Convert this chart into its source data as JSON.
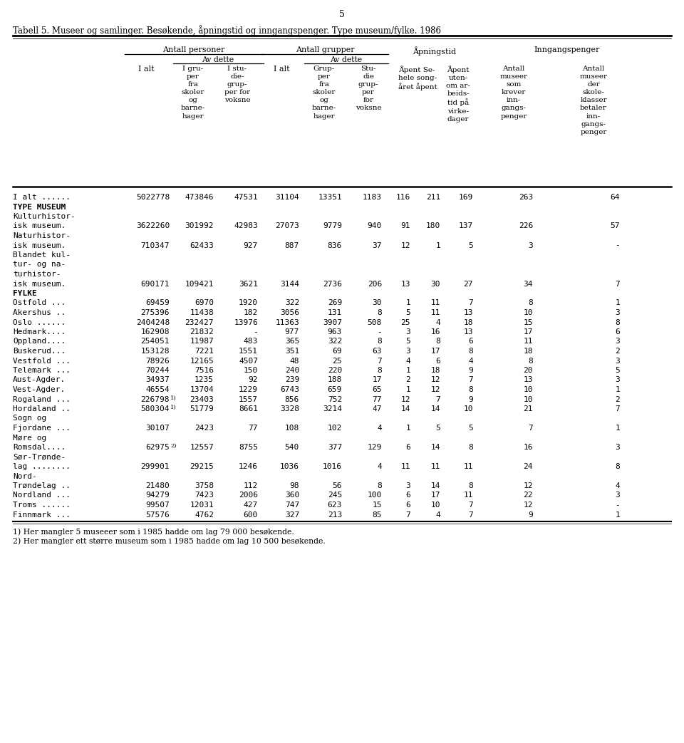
{
  "page_number": "5",
  "title": "Tabell 5. Museer og samlinger. Besøkende, åpningstid og inngangspenger. Type museum/fylke. 1986",
  "rows": [
    {
      "label": "I alt ......",
      "data": [
        "5022778",
        "473846",
        "47531",
        "31104",
        "13351",
        "1183",
        "116",
        "211",
        "169",
        "263",
        "64"
      ],
      "bold": false,
      "data_row": true
    },
    {
      "label": "TYPE MUSEUM",
      "data": null,
      "bold": true,
      "section": true
    },
    {
      "label": "Kulturhistor-",
      "data": null,
      "bold": false
    },
    {
      "label": "isk museum.",
      "data": [
        "3622260",
        "301992",
        "42983",
        "27073",
        "9779",
        "940",
        "91",
        "180",
        "137",
        "226",
        "57"
      ],
      "bold": false,
      "data_row": true
    },
    {
      "label": "Naturhistor-",
      "data": null,
      "bold": false
    },
    {
      "label": "isk museum.",
      "data": [
        "710347",
        "62433",
        "927",
        "887",
        "836",
        "37",
        "12",
        "1",
        "5",
        "3",
        "-"
      ],
      "bold": false,
      "data_row": true
    },
    {
      "label": "Blandet kul-",
      "data": null,
      "bold": false
    },
    {
      "label": "tur- og na-",
      "data": null,
      "bold": false
    },
    {
      "label": "turhistor-",
      "data": null,
      "bold": false
    },
    {
      "label": "isk museum.",
      "data": [
        "690171",
        "109421",
        "3621",
        "3144",
        "2736",
        "206",
        "13",
        "30",
        "27",
        "34",
        "7"
      ],
      "bold": false,
      "data_row": true
    },
    {
      "label": "FYLKE",
      "data": null,
      "bold": true,
      "section": true
    },
    {
      "label": "Ostfold ...",
      "data": [
        "69459",
        "6970",
        "1920",
        "322",
        "269",
        "30",
        "1",
        "11",
        "7",
        "8",
        "1"
      ],
      "bold": false,
      "data_row": true
    },
    {
      "label": "Akershus ..",
      "data": [
        "275396",
        "11438",
        "182",
        "3056",
        "131",
        "8",
        "5",
        "11",
        "13",
        "10",
        "3"
      ],
      "bold": false,
      "data_row": true
    },
    {
      "label": "Oslo ......",
      "data": [
        "2404248",
        "232427",
        "13976",
        "11363",
        "3907",
        "508",
        "25",
        "4",
        "18",
        "15",
        "8"
      ],
      "bold": false,
      "data_row": true
    },
    {
      "label": "Hedmark....",
      "data": [
        "162908",
        "21832",
        "-",
        "977",
        "963",
        "-",
        "3",
        "16",
        "13",
        "17",
        "6"
      ],
      "bold": false,
      "data_row": true
    },
    {
      "label": "Oppland....",
      "data": [
        "254051",
        "11987",
        "483",
        "365",
        "322",
        "8",
        "5",
        "8",
        "6",
        "11",
        "3"
      ],
      "bold": false,
      "data_row": true
    },
    {
      "label": "Buskerud...",
      "data": [
        "153128",
        "7221",
        "1551",
        "351",
        "69",
        "63",
        "3",
        "17",
        "8",
        "18",
        "2"
      ],
      "bold": false,
      "data_row": true
    },
    {
      "label": "Vestfold ...",
      "data": [
        "78926",
        "12165",
        "4507",
        "48",
        "25",
        "7",
        "4",
        "6",
        "4",
        "8",
        "3"
      ],
      "bold": false,
      "data_row": true
    },
    {
      "label": "Telemark ...",
      "data": [
        "70244",
        "7516",
        "150",
        "240",
        "220",
        "8",
        "1",
        "18",
        "9",
        "20",
        "5"
      ],
      "bold": false,
      "data_row": true
    },
    {
      "label": "Aust-Agder.",
      "data": [
        "34937",
        "1235",
        "92",
        "239",
        "188",
        "17",
        "2",
        "12",
        "7",
        "13",
        "3"
      ],
      "bold": false,
      "data_row": true
    },
    {
      "label": "Vest-Agder.",
      "data": [
        "46554",
        "13704",
        "1229",
        "6743",
        "659",
        "65",
        "1",
        "12",
        "8",
        "10",
        "1"
      ],
      "bold": false,
      "data_row": true
    },
    {
      "label": "Rogaland ...",
      "data": [
        "226798",
        "23403",
        "1557",
        "856",
        "752",
        "77",
        "12",
        "7",
        "9",
        "10",
        "2"
      ],
      "rog_note": true,
      "bold": false,
      "data_row": true
    },
    {
      "label": "Hordaland ..",
      "data": [
        "580304",
        "51779",
        "8661",
        "3328",
        "3214",
        "47",
        "14",
        "14",
        "10",
        "21",
        "7"
      ],
      "hord_note": true,
      "bold": false,
      "data_row": true
    },
    {
      "label": "Sogn og",
      "data": null,
      "bold": false
    },
    {
      "label": "Fjordane ...",
      "data": [
        "30107",
        "2423",
        "77",
        "108",
        "102",
        "4",
        "1",
        "5",
        "5",
        "7",
        "1"
      ],
      "bold": false,
      "data_row": true
    },
    {
      "label": "Møre og",
      "data": null,
      "bold": false
    },
    {
      "label": "Romsdal....",
      "data": [
        "62975",
        "12557",
        "8755",
        "540",
        "377",
        "129",
        "6",
        "14",
        "8",
        "16",
        "3"
      ],
      "romsdal_note": true,
      "bold": false,
      "data_row": true
    },
    {
      "label": "Sør-Trønde-",
      "data": null,
      "bold": false
    },
    {
      "label": "lag ........",
      "data": [
        "299901",
        "29215",
        "1246",
        "1036",
        "1016",
        "4",
        "11",
        "11",
        "11",
        "24",
        "8"
      ],
      "bold": false,
      "data_row": true
    },
    {
      "label": "Nord-",
      "data": null,
      "bold": false
    },
    {
      "label": "Trøndelag ..",
      "data": [
        "21480",
        "3758",
        "112",
        "98",
        "56",
        "8",
        "3",
        "14",
        "8",
        "12",
        "4"
      ],
      "bold": false,
      "data_row": true
    },
    {
      "label": "Nordland ...",
      "data": [
        "94279",
        "7423",
        "2006",
        "360",
        "245",
        "100",
        "6",
        "17",
        "11",
        "22",
        "3"
      ],
      "bold": false,
      "data_row": true
    },
    {
      "label": "Troms ......",
      "data": [
        "99507",
        "12031",
        "427",
        "747",
        "623",
        "15",
        "6",
        "10",
        "7",
        "12",
        "-"
      ],
      "bold": false,
      "data_row": true
    },
    {
      "label": "Finnmark ...",
      "data": [
        "57576",
        "4762",
        "600",
        "327",
        "213",
        "85",
        "7",
        "4",
        "7",
        "9",
        "1"
      ],
      "bold": false,
      "data_row": true
    }
  ],
  "footnotes": [
    "1) Her mangler 5 museeer som i 1985 hadde om lag 79 000 besøkende.",
    "2) Her mangler ett større museum som i 1985 hadde om lag 10 500 besøkende."
  ]
}
